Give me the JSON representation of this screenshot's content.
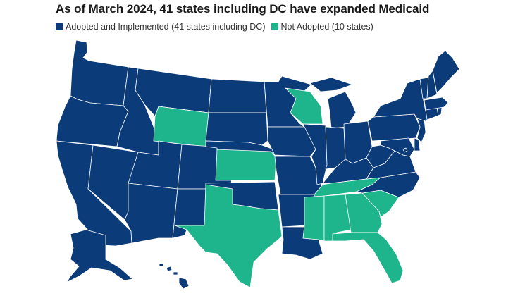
{
  "title": "As of March 2024, 41 states including DC have expanded Medicaid",
  "legend": [
    {
      "label": "Adopted and Implemented (41 states including DC)",
      "color": "#0b3b78"
    },
    {
      "label": "Not Adopted (10 states)",
      "color": "#1fb58c"
    }
  ],
  "colors": {
    "adopted": "#0b3b78",
    "not_adopted": "#1fb58c",
    "border": "#ffffff"
  },
  "states": {
    "WA": "adopted",
    "OR": "adopted",
    "CA": "adopted",
    "NV": "adopted",
    "ID": "adopted",
    "MT": "adopted",
    "WY": "not_adopted",
    "UT": "adopted",
    "AZ": "adopted",
    "CO": "adopted",
    "NM": "adopted",
    "ND": "adopted",
    "SD": "adopted",
    "NE": "adopted",
    "KS": "not_adopted",
    "OK": "adopted",
    "TX": "not_adopted",
    "MN": "adopted",
    "IA": "adopted",
    "MO": "adopted",
    "AR": "adopted",
    "LA": "adopted",
    "WI": "not_adopted",
    "IL": "adopted",
    "MI": "adopted",
    "IN": "adopted",
    "KY": "adopted",
    "TN": "not_adopted",
    "MS": "not_adopted",
    "AL": "not_adopted",
    "OH": "adopted",
    "WV": "adopted",
    "VA": "adopted",
    "NC": "adopted",
    "SC": "not_adopted",
    "GA": "not_adopted",
    "FL": "not_adopted",
    "PA": "adopted",
    "NY": "adopted",
    "VT": "adopted",
    "NH": "adopted",
    "ME": "adopted",
    "MA": "adopted",
    "RI": "adopted",
    "CT": "adopted",
    "NJ": "adopted",
    "DE": "adopted",
    "MD": "adopted",
    "DC": "adopted",
    "AK": "adopted",
    "HI": "adopted"
  }
}
